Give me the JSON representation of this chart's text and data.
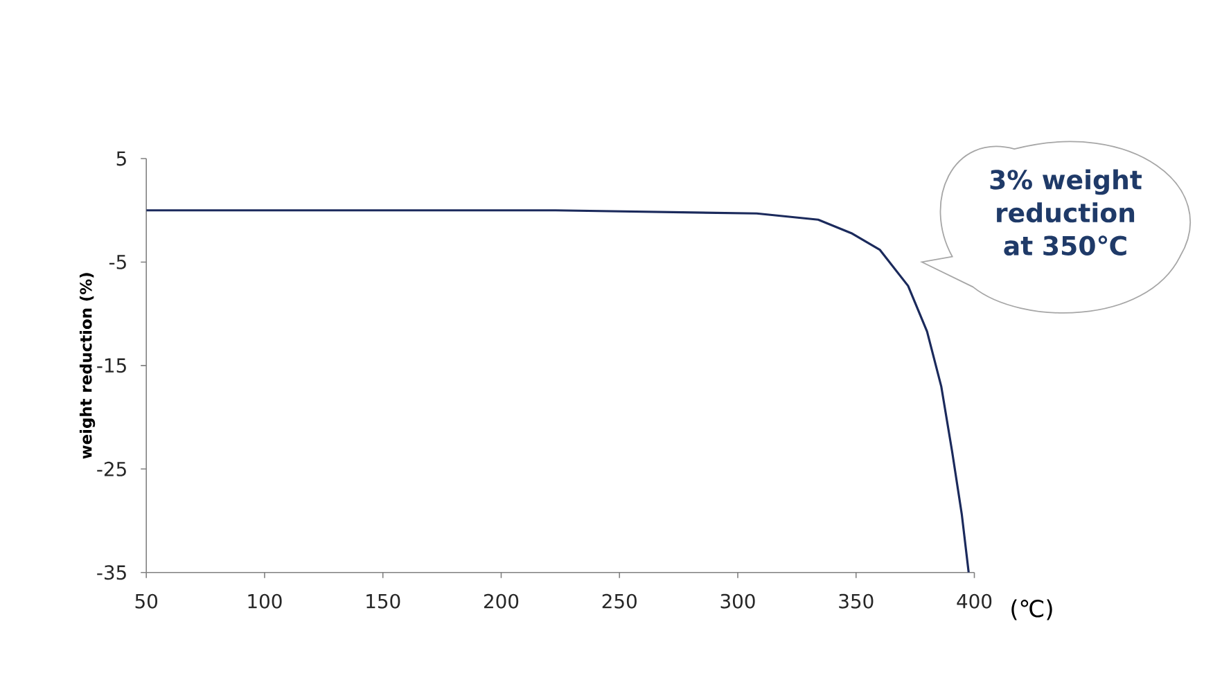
{
  "chart_data": {
    "type": "line",
    "xlabel": "(℃)",
    "ylabel": "weight reduction (%)",
    "annotations": [
      "3% weight reduction at 350℃"
    ],
    "xlim": [
      50,
      400
    ],
    "xticks": [
      50,
      100,
      150,
      200,
      250,
      300,
      350,
      400
    ],
    "ylim": [
      -35,
      5
    ],
    "yticks": [
      -35,
      -25,
      -15,
      -5,
      5
    ],
    "grid": false,
    "legend": false,
    "marker": "none",
    "line_style": "solid",
    "series": [
      {
        "color": "#1b2a5c",
        "x": [
          50,
          223,
          308,
          334,
          348,
          360,
          372,
          380,
          386,
          390.6,
          394.7,
          397.6
        ],
        "values": [
          0,
          0,
          -0.3,
          -0.9,
          -2.2,
          -3.8,
          -7.3,
          -11.7,
          -17,
          -23.3,
          -29.4,
          -35
        ]
      }
    ]
  }
}
